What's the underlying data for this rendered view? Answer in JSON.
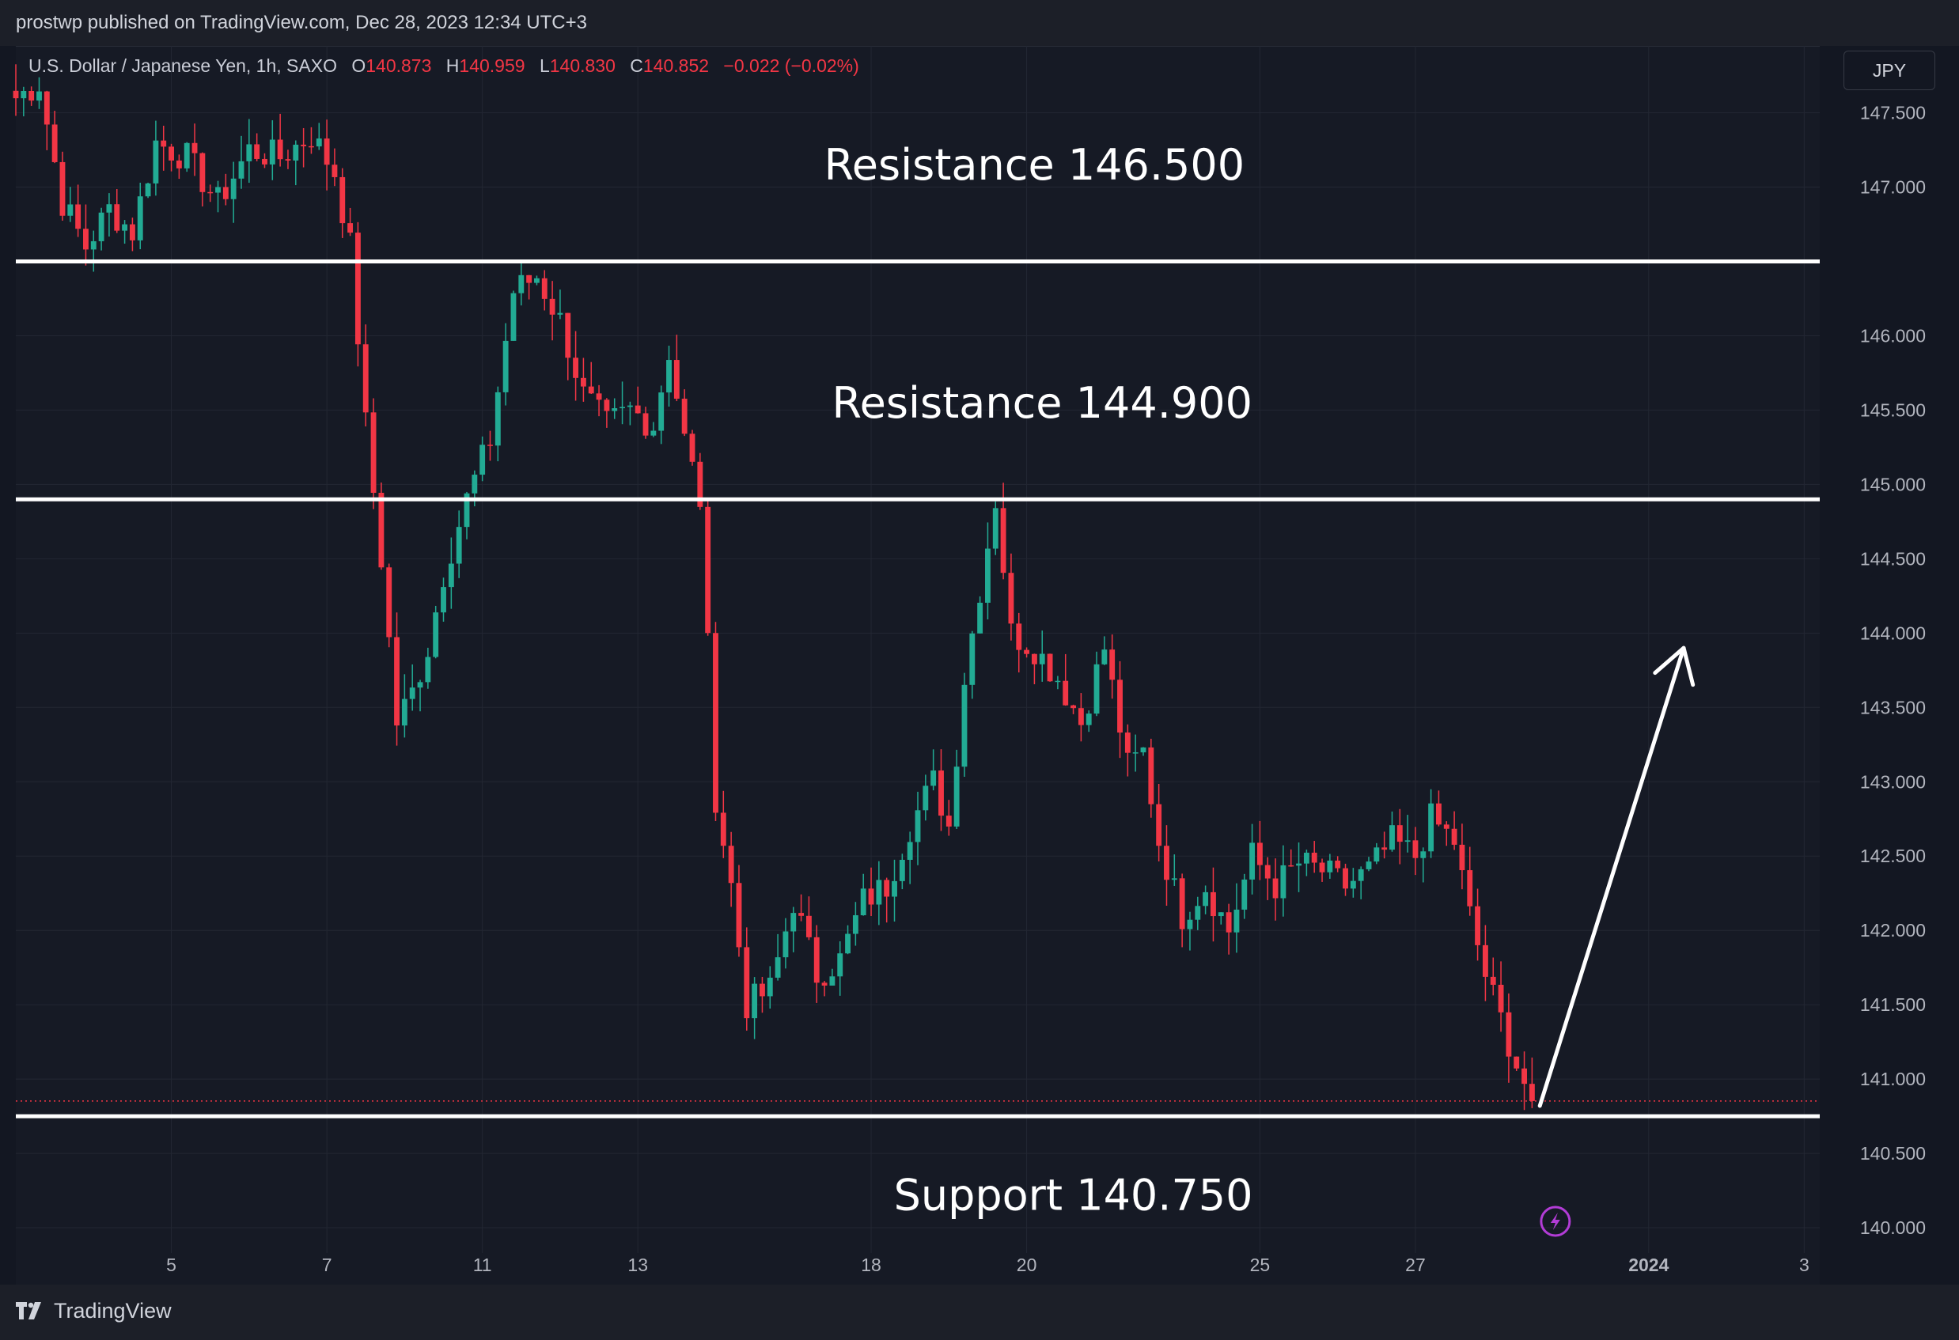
{
  "header": {
    "published": "prostwp published on TradingView.com, Dec 28, 2023 12:34 UTC+3"
  },
  "legend": {
    "symbol": "U.S. Dollar / Japanese Yen, 1h, SAXO",
    "o_label": "O",
    "o_value": "140.873",
    "h_label": "H",
    "h_value": "140.959",
    "l_label": "L",
    "l_value": "140.830",
    "c_label": "C",
    "c_value": "140.852",
    "change": "−0.022 (−0.02%)"
  },
  "currency_button": "JPY",
  "brand": {
    "name": "TradingView"
  },
  "colors": {
    "up": "#22ab94",
    "down": "#f23645",
    "background": "#161a25",
    "grid": "#232733",
    "annotation": "#ffffff"
  },
  "chart_data": {
    "type": "candlestick",
    "ylim": [
      139.83,
      147.95
    ],
    "y_ticks": [
      "147.500",
      "147.000",
      "146.000",
      "145.500",
      "145.000",
      "144.500",
      "144.000",
      "143.500",
      "143.000",
      "142.500",
      "142.000",
      "141.500",
      "141.000",
      "140.500",
      "140.000"
    ],
    "y_tick_values": [
      147.5,
      147.0,
      146.0,
      145.5,
      145.0,
      144.5,
      144.0,
      143.5,
      143.0,
      142.5,
      142.0,
      141.5,
      141.0,
      140.5,
      140.0
    ],
    "x_ticks": [
      {
        "label": "5",
        "bar": 20,
        "bold": false
      },
      {
        "label": "7",
        "bar": 40,
        "bold": false
      },
      {
        "label": "11",
        "bar": 60,
        "bold": false
      },
      {
        "label": "13",
        "bar": 80,
        "bold": false
      },
      {
        "label": "18",
        "bar": 110,
        "bold": false
      },
      {
        "label": "20",
        "bar": 130,
        "bold": false
      },
      {
        "label": "25",
        "bar": 160,
        "bold": false
      },
      {
        "label": "27",
        "bar": 180,
        "bold": false
      },
      {
        "label": "2024",
        "bar": 210,
        "bold": true
      },
      {
        "label": "3",
        "bar": 230,
        "bold": false
      }
    ],
    "x_domain": [
      0,
      232
    ],
    "close_waypoints": [
      [
        0,
        147.6
      ],
      [
        3,
        147.7
      ],
      [
        6,
        146.9
      ],
      [
        9,
        146.6
      ],
      [
        12,
        146.85
      ],
      [
        15,
        146.7
      ],
      [
        18,
        147.3
      ],
      [
        22,
        147.2
      ],
      [
        26,
        146.9
      ],
      [
        30,
        147.25
      ],
      [
        34,
        147.2
      ],
      [
        38,
        147.35
      ],
      [
        41,
        147.1
      ],
      [
        43,
        146.6
      ],
      [
        45,
        145.4
      ],
      [
        47,
        144.5
      ],
      [
        49,
        143.4
      ],
      [
        51,
        143.6
      ],
      [
        53,
        143.9
      ],
      [
        55,
        144.4
      ],
      [
        58,
        144.9
      ],
      [
        61,
        145.3
      ],
      [
        64,
        146.3
      ],
      [
        67,
        146.4
      ],
      [
        70,
        146.1
      ],
      [
        73,
        145.6
      ],
      [
        76,
        145.4
      ],
      [
        79,
        145.5
      ],
      [
        82,
        145.4
      ],
      [
        84,
        145.9
      ],
      [
        86,
        145.3
      ],
      [
        88,
        144.9
      ],
      [
        90,
        142.9
      ],
      [
        92,
        142.3
      ],
      [
        94,
        141.5
      ],
      [
        97,
        141.6
      ],
      [
        100,
        142.2
      ],
      [
        103,
        141.7
      ],
      [
        106,
        141.8
      ],
      [
        109,
        142.2
      ],
      [
        112,
        142.3
      ],
      [
        115,
        142.7
      ],
      [
        118,
        143.0
      ],
      [
        120,
        142.7
      ],
      [
        122,
        143.7
      ],
      [
        124,
        144.3
      ],
      [
        126,
        144.9
      ],
      [
        128,
        144.0
      ],
      [
        131,
        143.9
      ],
      [
        134,
        143.7
      ],
      [
        137,
        143.4
      ],
      [
        140,
        143.9
      ],
      [
        143,
        143.1
      ],
      [
        145,
        143.2
      ],
      [
        147,
        142.6
      ],
      [
        150,
        142.1
      ],
      [
        153,
        142.3
      ],
      [
        156,
        142.0
      ],
      [
        159,
        142.5
      ],
      [
        162,
        142.3
      ],
      [
        165,
        142.45
      ],
      [
        168,
        142.4
      ],
      [
        171,
        142.3
      ],
      [
        174,
        142.4
      ],
      [
        177,
        142.6
      ],
      [
        180,
        142.5
      ],
      [
        182,
        142.75
      ],
      [
        185,
        142.6
      ],
      [
        187,
        142.1
      ],
      [
        189,
        141.7
      ],
      [
        191,
        141.4
      ],
      [
        193,
        141.1
      ],
      [
        195,
        140.85
      ]
    ],
    "last_close": 140.852,
    "horizontal_levels": [
      {
        "value": 146.5,
        "label": "146.500"
      },
      {
        "value": 144.9,
        "label": "144.900"
      },
      {
        "value": 140.75,
        "label": "140.750"
      }
    ],
    "annotations": [
      {
        "text": "Resistance 146.500",
        "bar": 131,
        "price": 147.05
      },
      {
        "text": "Resistance 144.900",
        "bar": 132,
        "price": 145.45
      },
      {
        "text": "Support 140.750",
        "bar": 136,
        "price": 140.12
      }
    ],
    "arrow": {
      "from": [
        196,
        140.82
      ],
      "to": [
        214.5,
        143.9
      ]
    }
  }
}
